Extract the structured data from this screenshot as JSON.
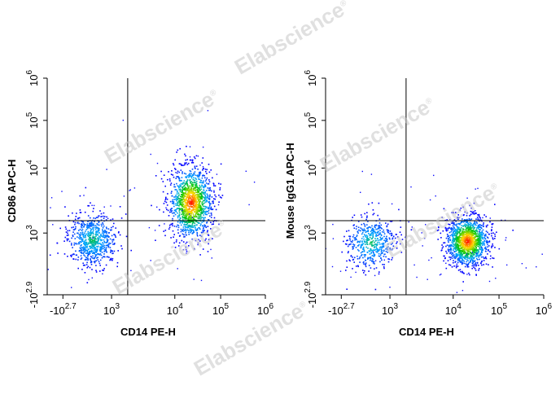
{
  "chart_data": [
    {
      "type": "scatter",
      "title": "",
      "xlabel": "CD14 PE-H",
      "ylabel": "CD86 APC-H",
      "x_ticks": [
        {
          "base": "-10",
          "exp": "2.7"
        },
        {
          "base": "10",
          "exp": "3"
        },
        {
          "base": "10",
          "exp": "4"
        },
        {
          "base": "10",
          "exp": "5"
        },
        {
          "base": "10",
          "exp": "6"
        }
      ],
      "y_ticks": [
        {
          "base": "-10",
          "exp": "2.9"
        },
        {
          "base": "10",
          "exp": "3"
        },
        {
          "base": "10",
          "exp": "4"
        },
        {
          "base": "10",
          "exp": "5"
        },
        {
          "base": "10",
          "exp": "6"
        }
      ],
      "gate": {
        "x": 1800,
        "y": 1550
      },
      "populations": [
        {
          "name": "",
          "x_center": 250,
          "y_center": 700,
          "n": 700
        },
        {
          "name": "",
          "x_center": 22000,
          "y_center": 3000,
          "n": 1300
        }
      ]
    },
    {
      "type": "scatter",
      "title": "",
      "xlabel": "CD14 PE-H",
      "ylabel": "Mouse IgG1 APC-H",
      "x_ticks": [
        {
          "base": "-10",
          "exp": "2.7"
        },
        {
          "base": "10",
          "exp": "3"
        },
        {
          "base": "10",
          "exp": "4"
        },
        {
          "base": "10",
          "exp": "5"
        },
        {
          "base": "10",
          "exp": "6"
        }
      ],
      "y_ticks": [
        {
          "base": "-10",
          "exp": "2.9"
        },
        {
          "base": "10",
          "exp": "3"
        },
        {
          "base": "10",
          "exp": "4"
        },
        {
          "base": "10",
          "exp": "5"
        },
        {
          "base": "10",
          "exp": "6"
        }
      ],
      "gate": {
        "x": 1800,
        "y": 1550
      },
      "populations": [
        {
          "name": "",
          "x_center": 250,
          "y_center": 600,
          "n": 500
        },
        {
          "name": "",
          "x_center": 20000,
          "y_center": 650,
          "n": 1400
        }
      ]
    }
  ],
  "watermark": {
    "text": "Elabscience",
    "mark": "®"
  },
  "colors": {
    "low": "#0000ff",
    "mid": "#00c000",
    "high": "#ff0000",
    "gate_line": "#000000"
  }
}
